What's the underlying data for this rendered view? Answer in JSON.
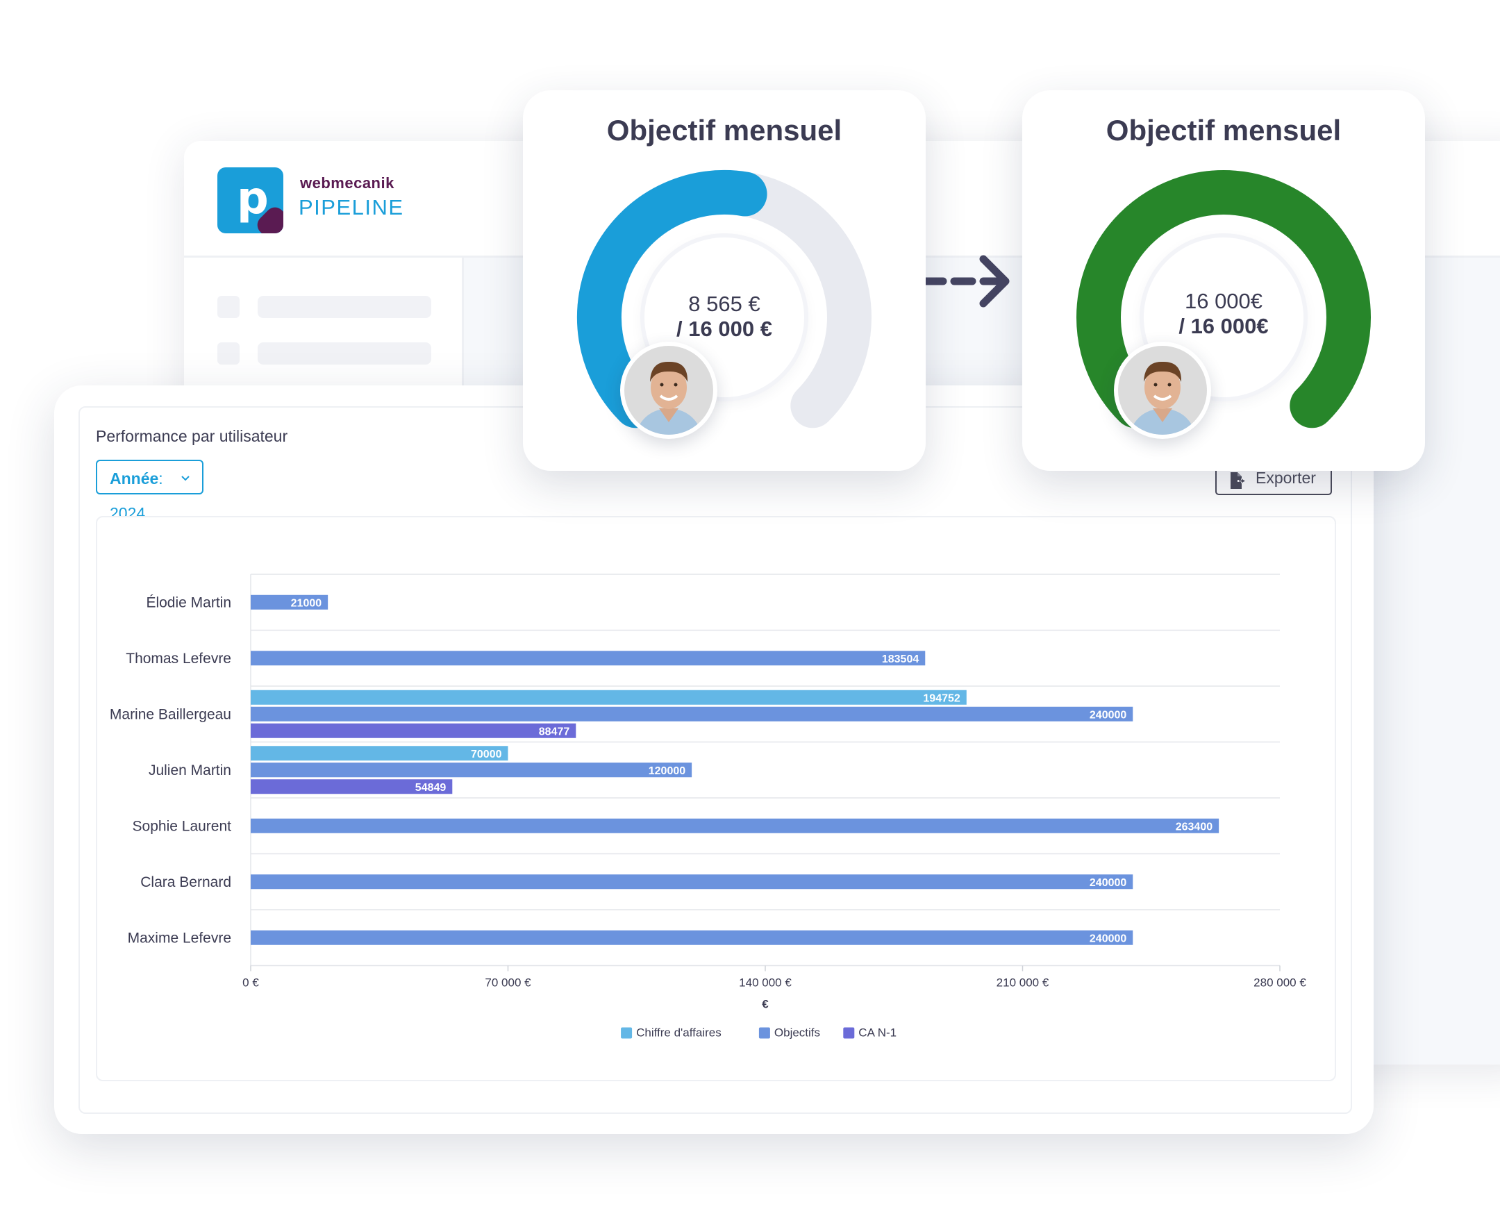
{
  "brand": {
    "company": "webmecanik",
    "product": "PIPELINE"
  },
  "objectives": [
    {
      "title": "Objectif mensuel",
      "value": "8 565 €",
      "target": "/ 16 000 €",
      "progress": 0.535,
      "color": "#1a9ed9",
      "track": "#e8eaf0"
    },
    {
      "title": "Objectif mensuel",
      "value": "16 000€",
      "target": "/ 16 000€",
      "progress": 1.0,
      "color": "#27862a",
      "track": "#e8eaf0"
    }
  ],
  "panel": {
    "title": "Performance par utilisateur",
    "year_label": "Année",
    "year_value": ": 2024",
    "export_label": "Exporter"
  },
  "chart_data": {
    "type": "bar",
    "orientation": "horizontal",
    "categories": [
      "Élodie Martin",
      "Thomas Lefevre",
      "Marine Baillergeau",
      "Julien Martin",
      "Sophie Laurent",
      "Clara Bernard",
      "Maxime Lefevre"
    ],
    "series": [
      {
        "name": "Chiffre d'affaires",
        "color": "#63b7e6",
        "values": [
          null,
          null,
          194752,
          70000,
          null,
          null,
          null
        ]
      },
      {
        "name": "Objectifs",
        "color": "#6b93de",
        "values": [
          21000,
          183504,
          240000,
          120000,
          263400,
          240000,
          240000
        ]
      },
      {
        "name": "CA N-1",
        "color": "#6b6bd8",
        "values": [
          null,
          null,
          88477,
          54849,
          null,
          null,
          null
        ]
      }
    ],
    "xlim": [
      0,
      280000
    ],
    "xticks": [
      0,
      70000,
      140000,
      210000,
      280000
    ],
    "xtick_labels": [
      "0 €",
      "70 000 €",
      "140 000 €",
      "210 000 €",
      "280 000 €"
    ],
    "xlabel": "€",
    "legend_position": "bottom",
    "grid": true
  }
}
